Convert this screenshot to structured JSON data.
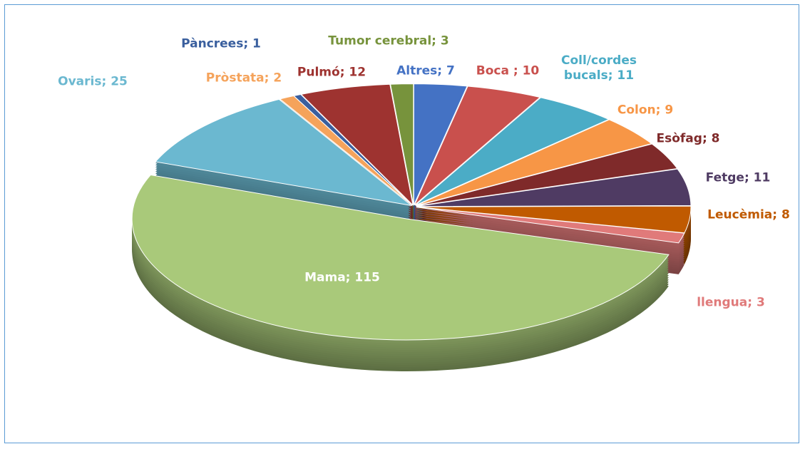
{
  "chart_data": {
    "type": "pie",
    "value_labels": [
      "Altres; 7",
      "Boca ; 10",
      "Coll/cordes bucals; 11",
      "Colon; 9",
      "Esòfag; 8",
      "Fetge; 11",
      "Leucèmia; 8",
      "llengua; 3",
      "Mama; 115",
      "Ovaris; 25",
      "Pròstata; 2",
      "Pàncrees; 1",
      "Pulmó; 12",
      "Tumor cerebral; 3"
    ],
    "values": [
      7,
      10,
      11,
      9,
      8,
      11,
      8,
      3,
      115,
      25,
      2,
      1,
      12,
      3
    ],
    "colors": [
      "#4472c4",
      "#c9504d",
      "#4bacc6",
      "#f79646",
      "#7f2a2a",
      "#4f3b63",
      "#c05a00",
      "#e07a7a",
      "#a9c97a",
      "#6bb8d0",
      "#f5a35b",
      "#3a5f9e",
      "#9e3330",
      "#77933c"
    ]
  }
}
